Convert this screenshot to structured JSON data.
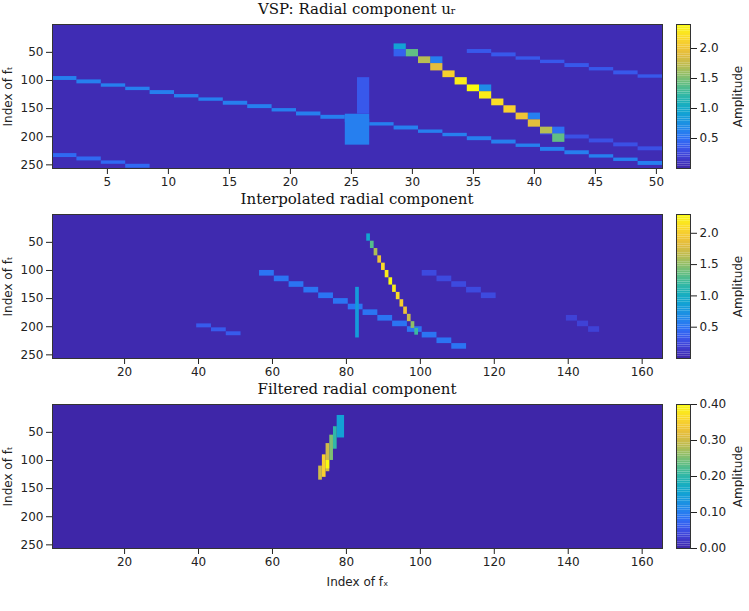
{
  "chart_data": [
    {
      "type": "heatmap",
      "title": "VSP: Radial component uᵣ",
      "y_label": "Index of fₜ",
      "xlim": [
        0.5,
        50.5
      ],
      "xticks": [
        5,
        10,
        15,
        20,
        25,
        30,
        35,
        40,
        45,
        50
      ],
      "ylim": [
        0.5,
        256.5
      ],
      "yticks": [
        50,
        100,
        150,
        200,
        250
      ],
      "colorbar": {
        "label": "Amplitude",
        "range": [
          0,
          2.4
        ],
        "ticks": [
          0.5,
          1,
          1.5,
          2
        ]
      },
      "background": 0.05,
      "cells": [
        [
          0.5,
          2.5,
          93,
          100,
          0.6
        ],
        [
          2.5,
          4.5,
          99,
          106,
          0.6
        ],
        [
          4.5,
          6.5,
          106,
          112,
          0.6
        ],
        [
          6.5,
          8.5,
          112,
          118,
          0.6
        ],
        [
          8.5,
          10.5,
          118,
          125,
          0.6
        ],
        [
          10.5,
          12.5,
          125,
          131,
          0.6
        ],
        [
          12.5,
          14.5,
          131,
          137,
          0.6
        ],
        [
          14.5,
          16.5,
          137,
          144,
          0.6
        ],
        [
          16.5,
          18.5,
          143,
          150,
          0.6
        ],
        [
          18.5,
          20.5,
          150,
          156,
          0.6
        ],
        [
          20.5,
          22.5,
          156,
          163,
          0.6
        ],
        [
          22.5,
          24.5,
          162,
          169,
          0.6
        ],
        [
          24.5,
          26.5,
          169,
          175,
          0.6
        ],
        [
          26.5,
          28.5,
          175,
          181,
          0.6
        ],
        [
          28.5,
          30.5,
          181,
          188,
          0.6
        ],
        [
          30.5,
          32.5,
          188,
          194,
          0.6
        ],
        [
          32.5,
          34.5,
          194,
          200,
          0.6
        ],
        [
          34.5,
          36.5,
          200,
          207,
          0.6
        ],
        [
          36.5,
          38.5,
          206,
          213,
          0.6
        ],
        [
          38.5,
          40.5,
          213,
          219,
          0.6
        ],
        [
          40.5,
          42.5,
          219,
          226,
          0.6
        ],
        [
          42.5,
          44.5,
          225,
          232,
          0.6
        ],
        [
          44.5,
          46.5,
          232,
          238,
          0.6
        ],
        [
          46.5,
          48.5,
          238,
          244,
          0.6
        ],
        [
          48.5,
          50.5,
          244,
          251,
          0.6
        ],
        [
          0.5,
          2.5,
          230,
          237,
          0.45
        ],
        [
          2.5,
          4.5,
          236,
          243,
          0.45
        ],
        [
          4.5,
          6.5,
          243,
          249,
          0.45
        ],
        [
          6.5,
          8.5,
          249,
          256,
          0.45
        ],
        [
          34.5,
          36.5,
          45,
          52,
          0.35
        ],
        [
          36.5,
          38.5,
          51,
          58,
          0.35
        ],
        [
          38.5,
          40.5,
          58,
          64,
          0.35
        ],
        [
          40.5,
          42.5,
          64,
          70,
          0.35
        ],
        [
          42.5,
          44.5,
          70,
          77,
          0.35
        ],
        [
          44.5,
          46.5,
          77,
          83,
          0.35
        ],
        [
          46.5,
          48.5,
          83,
          90,
          0.35
        ],
        [
          48.5,
          50.5,
          90,
          96,
          0.35
        ],
        [
          40.5,
          42.5,
          190,
          197,
          0.3
        ],
        [
          42.5,
          44.5,
          197,
          204,
          0.3
        ],
        [
          44.5,
          46.5,
          204,
          211,
          0.3
        ],
        [
          46.5,
          48.5,
          211,
          218,
          0.3
        ],
        [
          48.5,
          50.5,
          218,
          225,
          0.3
        ],
        [
          24.5,
          26.5,
          160,
          215,
          0.6
        ],
        [
          25.5,
          26.5,
          95,
          160,
          0.35
        ],
        [
          28.5,
          29.5,
          45,
          58,
          0.4
        ],
        [
          31.5,
          32.5,
          58,
          70,
          0.6
        ],
        [
          35.5,
          36.5,
          108,
          120,
          0.7
        ],
        [
          39.5,
          40.5,
          158,
          170,
          0.6
        ],
        [
          41.5,
          42.5,
          183,
          195,
          0.5
        ],
        [
          28.5,
          29.5,
          35,
          45,
          0.9
        ],
        [
          29.5,
          30.5,
          45,
          58,
          1.4
        ],
        [
          30.5,
          31.5,
          58,
          70,
          1.7
        ],
        [
          31.5,
          32.5,
          70,
          83,
          1.9
        ],
        [
          32.5,
          33.5,
          83,
          95,
          2.1
        ],
        [
          33.5,
          34.5,
          95,
          108,
          2.3
        ],
        [
          34.5,
          35.5,
          108,
          120,
          2.4
        ],
        [
          35.5,
          36.5,
          120,
          133,
          2.3
        ],
        [
          36.5,
          37.5,
          133,
          145,
          2.2
        ],
        [
          37.5,
          38.5,
          145,
          158,
          2.1
        ],
        [
          38.5,
          39.5,
          158,
          170,
          2.0
        ],
        [
          39.5,
          40.5,
          170,
          183,
          1.9
        ],
        [
          40.5,
          41.5,
          183,
          195,
          1.7
        ],
        [
          41.5,
          42.5,
          195,
          210,
          1.4
        ]
      ]
    },
    {
      "type": "heatmap",
      "title": "Interpolated radial component",
      "y_label": "Index of fₜ",
      "xlim": [
        0.5,
        165.5
      ],
      "xticks": [
        20,
        40,
        60,
        80,
        100,
        120,
        140,
        160
      ],
      "ylim": [
        0.5,
        256.5
      ],
      "yticks": [
        50,
        100,
        150,
        200,
        250
      ],
      "colorbar": {
        "label": "Amplitude",
        "range": [
          0,
          2.3
        ],
        "ticks": [
          0.5,
          1,
          1.5,
          2
        ]
      },
      "background": 0.03,
      "cells": [
        [
          56.5,
          60.5,
          100,
          110,
          0.5
        ],
        [
          60.5,
          64.5,
          110,
          120,
          0.5
        ],
        [
          64.5,
          68.5,
          120,
          130,
          0.5
        ],
        [
          68.5,
          72.5,
          130,
          140,
          0.5
        ],
        [
          72.5,
          76.5,
          140,
          150,
          0.5
        ],
        [
          76.5,
          80.5,
          150,
          160,
          0.5
        ],
        [
          80.5,
          84.5,
          160,
          170,
          0.5
        ],
        [
          84.5,
          88.5,
          170,
          180,
          0.5
        ],
        [
          88.5,
          92.5,
          180,
          190,
          0.5
        ],
        [
          92.5,
          96.5,
          190,
          200,
          0.5
        ],
        [
          96.5,
          100.5,
          200,
          210,
          0.5
        ],
        [
          100.5,
          104.5,
          210,
          220,
          0.5
        ],
        [
          104.5,
          108.5,
          220,
          230,
          0.5
        ],
        [
          108.5,
          112.5,
          230,
          240,
          0.5
        ],
        [
          39.5,
          43.5,
          195,
          202,
          0.35
        ],
        [
          43.5,
          47.5,
          202,
          209,
          0.35
        ],
        [
          47.5,
          51.5,
          209,
          216,
          0.35
        ],
        [
          100.5,
          104.5,
          100,
          110,
          0.25
        ],
        [
          104.5,
          108.5,
          110,
          120,
          0.25
        ],
        [
          108.5,
          112.5,
          120,
          130,
          0.25
        ],
        [
          112.5,
          116.5,
          130,
          140,
          0.25
        ],
        [
          116.5,
          120.5,
          140,
          150,
          0.25
        ],
        [
          139.5,
          142.5,
          180,
          190,
          0.2
        ],
        [
          142.5,
          145.5,
          190,
          200,
          0.2
        ],
        [
          145.5,
          148.5,
          200,
          210,
          0.2
        ],
        [
          82.5,
          83.5,
          130,
          220,
          0.8
        ],
        [
          85.5,
          86.5,
          35,
          48,
          0.9
        ],
        [
          86.5,
          87.5,
          48,
          61,
          1.3
        ],
        [
          87.5,
          88.5,
          61,
          74,
          1.6
        ],
        [
          88.5,
          89.5,
          74,
          87,
          1.9
        ],
        [
          89.5,
          90.5,
          87,
          100,
          2.1
        ],
        [
          90.5,
          91.5,
          100,
          113,
          2.2
        ],
        [
          91.5,
          92.5,
          113,
          126,
          2.3
        ],
        [
          92.5,
          93.5,
          126,
          139,
          2.2
        ],
        [
          93.5,
          94.5,
          139,
          152,
          2.1
        ],
        [
          94.5,
          95.5,
          152,
          165,
          2.0
        ],
        [
          95.5,
          96.5,
          165,
          178,
          1.9
        ],
        [
          96.5,
          97.5,
          178,
          191,
          1.7
        ],
        [
          97.5,
          98.5,
          191,
          203,
          1.5
        ],
        [
          98.5,
          99.5,
          203,
          215,
          1.2
        ]
      ]
    },
    {
      "type": "heatmap",
      "title": "Filtered radial component",
      "x_label": "Index of fₓ",
      "y_label": "Index of fₜ",
      "xlim": [
        0.5,
        165.5
      ],
      "xticks": [
        20,
        40,
        60,
        80,
        100,
        120,
        140,
        160
      ],
      "ylim": [
        0.5,
        256.5
      ],
      "yticks": [
        50,
        100,
        150,
        200,
        250
      ],
      "colorbar": {
        "label": "Amplitude",
        "range": [
          0,
          0.4
        ],
        "ticks": [
          0,
          0.1,
          0.2,
          0.3,
          0.4
        ]
      },
      "background": 0,
      "cells": [
        [
          77.5,
          79.5,
          20,
          60,
          0.15
        ],
        [
          76.5,
          77.5,
          40,
          80,
          0.2
        ],
        [
          75.5,
          76.5,
          55,
          100,
          0.25
        ],
        [
          74.5,
          75.5,
          70,
          120,
          0.3
        ],
        [
          73.5,
          74.5,
          90,
          130,
          0.35
        ],
        [
          72.5,
          73.5,
          110,
          135,
          0.3
        ],
        [
          74.5,
          75.5,
          100,
          115,
          0.4
        ]
      ]
    }
  ]
}
